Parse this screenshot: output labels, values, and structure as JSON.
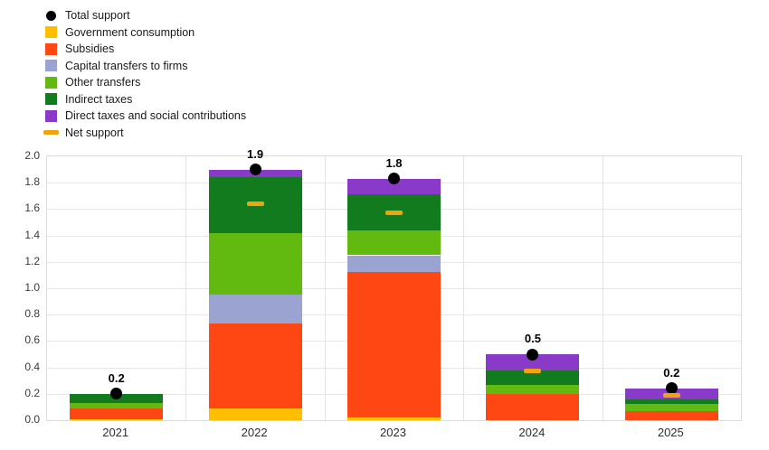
{
  "chart_data": {
    "type": "bar",
    "stacked": true,
    "title": "",
    "xlabel": "",
    "ylabel": "",
    "categories": [
      "2021",
      "2022",
      "2023",
      "2024",
      "2025"
    ],
    "ylim": [
      0.0,
      2.0
    ],
    "ytick_labels": [
      "0.0",
      "0.2",
      "0.4",
      "0.6",
      "0.8",
      "1.0",
      "1.2",
      "1.4",
      "1.6",
      "1.8",
      "2.0"
    ],
    "grid": true,
    "legend_position": "top-left",
    "series": [
      {
        "name": "Government consumption",
        "color": "#FFBE00",
        "values": [
          0.01,
          0.09,
          0.02,
          0.0,
          0.0
        ]
      },
      {
        "name": "Subsidies",
        "color": "#FF4713",
        "values": [
          0.08,
          0.64,
          1.1,
          0.2,
          0.07
        ]
      },
      {
        "name": "Capital transfers to firms",
        "color": "#9BA4D0",
        "values": [
          0.0,
          0.22,
          0.13,
          0.0,
          0.0
        ]
      },
      {
        "name": "Other transfers",
        "color": "#62BA10",
        "values": [
          0.04,
          0.47,
          0.19,
          0.07,
          0.05
        ]
      },
      {
        "name": "Indirect taxes",
        "color": "#117B1D",
        "values": [
          0.07,
          0.42,
          0.27,
          0.11,
          0.04
        ]
      },
      {
        "name": "Direct taxes and social contributions",
        "color": "#8A3AC8",
        "values": [
          0.0,
          0.06,
          0.12,
          0.12,
          0.08
        ]
      }
    ],
    "total_support": {
      "name": "Total support",
      "color": "#000000",
      "values": [
        0.2,
        1.9,
        1.83,
        0.5,
        0.24
      ]
    },
    "net_support": {
      "name": "Net support",
      "color": "#F0A30A",
      "values": [
        null,
        1.64,
        1.57,
        0.37,
        0.19
      ]
    },
    "bar_labels": [
      "0.2",
      "1.9",
      "1.8",
      "0.5",
      "0.2"
    ]
  }
}
